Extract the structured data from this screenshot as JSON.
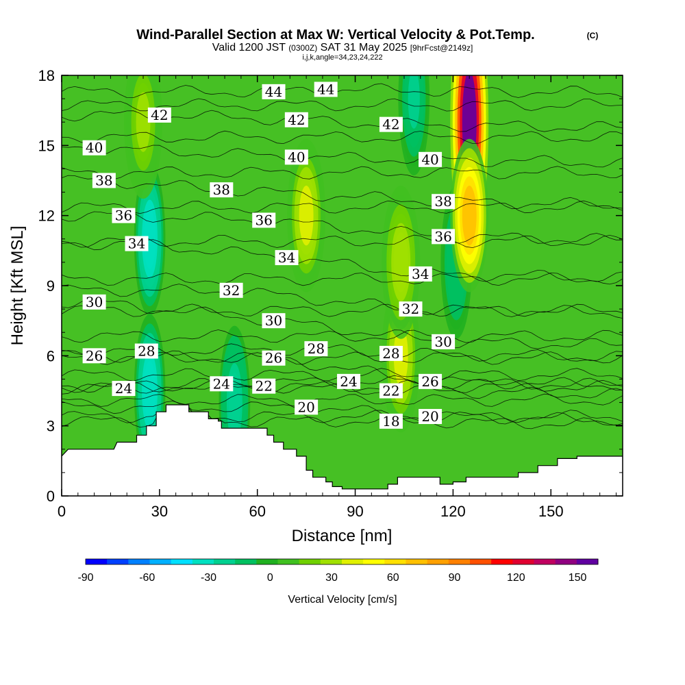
{
  "title": {
    "main": "Wind-Parallel Section at Max W: Vertical Velocity & Pot.Temp.",
    "copyright": "(C)",
    "valid_pre": "Valid 1200 JST",
    "valid_utc": "(0300Z)",
    "valid_date": "SAT 31 May 2025",
    "forecast": "[9hrFcst@2149z]",
    "indices": "i,j,k,angle=34,23,24,222"
  },
  "chart_data": {
    "type": "heatmap",
    "xlabel": "Distance [nm]",
    "ylabel": "Height [Kft MSL]",
    "xlim": [
      0,
      172
    ],
    "ylim": [
      0,
      18
    ],
    "x_ticks": [
      0,
      30,
      60,
      90,
      120,
      150
    ],
    "y_ticks": [
      0,
      3,
      6,
      9,
      12,
      15,
      18
    ],
    "x_tick_labels": [
      "0",
      "30",
      "60",
      "90",
      "120",
      "150"
    ],
    "y_tick_labels": [
      "0",
      "3",
      "6",
      "9",
      "12",
      "15",
      "18"
    ],
    "colorbar": {
      "label": "Vertical Velocity [cm/s]",
      "min": -90,
      "max": 160,
      "tick_values": [
        -90,
        -60,
        -30,
        0,
        30,
        60,
        90,
        120,
        150
      ],
      "tick_labels": [
        "-90",
        "-60",
        "-30",
        "0",
        "30",
        "60",
        "90",
        "120",
        "150"
      ],
      "colors": [
        "#0000ff",
        "#0040ff",
        "#0080ff",
        "#00b0ff",
        "#00e0ff",
        "#00e0c0",
        "#00d090",
        "#00c060",
        "#20b020",
        "#40c020",
        "#70d000",
        "#a0e000",
        "#e0f000",
        "#ffff00",
        "#ffe000",
        "#ffc000",
        "#ffa000",
        "#ff8000",
        "#ff5000",
        "#ff0000",
        "#e00030",
        "#c00060",
        "#900080",
        "#6000a0"
      ]
    },
    "terrain_kft": [
      [
        0,
        1.7
      ],
      [
        2,
        2
      ],
      [
        16,
        2
      ],
      [
        17,
        2.3
      ],
      [
        23,
        2.3
      ],
      [
        23,
        2.6
      ],
      [
        26,
        2.6
      ],
      [
        26,
        3
      ],
      [
        29,
        3
      ],
      [
        29,
        3.6
      ],
      [
        32,
        3.6
      ],
      [
        32,
        3.9
      ],
      [
        39,
        3.9
      ],
      [
        39,
        3.6
      ],
      [
        45,
        3.6
      ],
      [
        45,
        3.3
      ],
      [
        48,
        3.3
      ],
      [
        48,
        3.2
      ],
      [
        49,
        3.2
      ],
      [
        49,
        2.9
      ],
      [
        63,
        2.9
      ],
      [
        63,
        2.6
      ],
      [
        65,
        2.6
      ],
      [
        65,
        2.3
      ],
      [
        68,
        2.3
      ],
      [
        68,
        2
      ],
      [
        72,
        2
      ],
      [
        72,
        1.7
      ],
      [
        75,
        1.7
      ],
      [
        75,
        1.1
      ],
      [
        77,
        1.1
      ],
      [
        77,
        0.8
      ],
      [
        81,
        0.8
      ],
      [
        81,
        0.6
      ],
      [
        83,
        0.6
      ],
      [
        83,
        0.4
      ],
      [
        86,
        0.4
      ],
      [
        86,
        0.3
      ],
      [
        100,
        0.3
      ],
      [
        100,
        0.5
      ],
      [
        103,
        0.5
      ],
      [
        103,
        0.8
      ],
      [
        116,
        0.8
      ],
      [
        116,
        0.5
      ],
      [
        120,
        0.5
      ],
      [
        120,
        0.6
      ],
      [
        124,
        0.6
      ],
      [
        124,
        0.8
      ],
      [
        140,
        0.8
      ],
      [
        140,
        1
      ],
      [
        146,
        1
      ],
      [
        146,
        1.3
      ],
      [
        152,
        1.3
      ],
      [
        152,
        1.6
      ],
      [
        158,
        1.6
      ],
      [
        158,
        1.7
      ],
      [
        172,
        1.7
      ]
    ],
    "updrafts": [
      {
        "x": 125,
        "z": 16,
        "w": 150
      },
      {
        "x": 125,
        "z": 12,
        "w": 75
      },
      {
        "x": 75,
        "z": 12,
        "w": 40
      },
      {
        "x": 104,
        "z": 6,
        "w": 40
      },
      {
        "x": 104,
        "z": 10,
        "w": 30
      },
      {
        "x": 25,
        "z": 16,
        "w": 25
      }
    ],
    "downdrafts": [
      {
        "x": 27,
        "z": 11,
        "w": -35
      },
      {
        "x": 27,
        "z": 4.5,
        "w": -35
      },
      {
        "x": 53,
        "z": 4,
        "w": -25
      },
      {
        "x": 108,
        "z": 17,
        "w": -20
      },
      {
        "x": 121,
        "z": 10,
        "w": -15
      }
    ],
    "theta_labels": [
      {
        "text": "44",
        "x": 65,
        "z": 17.3
      },
      {
        "text": "44",
        "x": 81,
        "z": 17.4
      },
      {
        "text": "42",
        "x": 30,
        "z": 16.3
      },
      {
        "text": "42",
        "x": 72,
        "z": 16.1
      },
      {
        "text": "42",
        "x": 101,
        "z": 15.9
      },
      {
        "text": "40",
        "x": 10,
        "z": 14.9
      },
      {
        "text": "40",
        "x": 72,
        "z": 14.5
      },
      {
        "text": "40",
        "x": 113,
        "z": 14.4
      },
      {
        "text": "38",
        "x": 13,
        "z": 13.5
      },
      {
        "text": "38",
        "x": 49,
        "z": 13.1
      },
      {
        "text": "38",
        "x": 117,
        "z": 12.6
      },
      {
        "text": "36",
        "x": 19,
        "z": 12
      },
      {
        "text": "36",
        "x": 62,
        "z": 11.8
      },
      {
        "text": "36",
        "x": 117,
        "z": 11.1
      },
      {
        "text": "34",
        "x": 23,
        "z": 10.8
      },
      {
        "text": "34",
        "x": 69,
        "z": 10.2
      },
      {
        "text": "34",
        "x": 110,
        "z": 9.5
      },
      {
        "text": "32",
        "x": 52,
        "z": 8.8
      },
      {
        "text": "32",
        "x": 107,
        "z": 8
      },
      {
        "text": "30",
        "x": 10,
        "z": 8.3
      },
      {
        "text": "30",
        "x": 65,
        "z": 7.5
      },
      {
        "text": "30",
        "x": 117,
        "z": 6.6
      },
      {
        "text": "28",
        "x": 26,
        "z": 6.2
      },
      {
        "text": "28",
        "x": 78,
        "z": 6.3
      },
      {
        "text": "28",
        "x": 101,
        "z": 6.1
      },
      {
        "text": "26",
        "x": 10,
        "z": 6
      },
      {
        "text": "26",
        "x": 65,
        "z": 5.9
      },
      {
        "text": "26",
        "x": 113,
        "z": 4.9
      },
      {
        "text": "24",
        "x": 19,
        "z": 4.6
      },
      {
        "text": "24",
        "x": 49,
        "z": 4.8
      },
      {
        "text": "24",
        "x": 88,
        "z": 4.9
      },
      {
        "text": "22",
        "x": 62,
        "z": 4.7
      },
      {
        "text": "22",
        "x": 101,
        "z": 4.5
      },
      {
        "text": "20",
        "x": 75,
        "z": 3.8
      },
      {
        "text": "20",
        "x": 113,
        "z": 3.4
      },
      {
        "text": "18",
        "x": 101,
        "z": 3.2
      }
    ]
  }
}
